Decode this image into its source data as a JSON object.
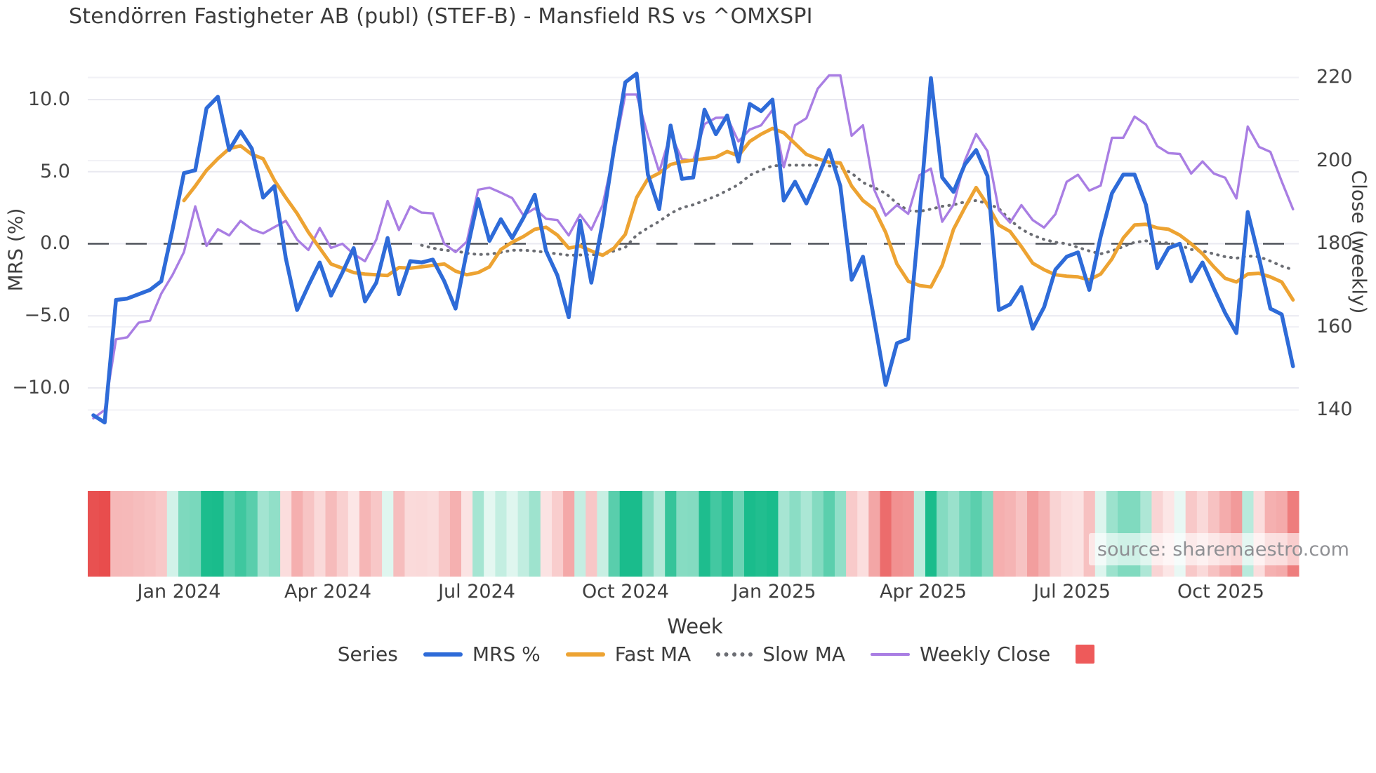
{
  "title": "Stendörren Fastigheter AB (publ) (STEF-B) - Mansfield RS vs ^OMXSPI",
  "source_note": "source: sharemaestro.com",
  "left_axis": {
    "label": "MRS (%)",
    "ticks": [
      {
        "label": "10.0"
      },
      {
        "label": "5.0"
      },
      {
        "label": "0.0"
      },
      {
        "label": "−5.0"
      },
      {
        "label": "−10.0"
      }
    ]
  },
  "right_axis": {
    "label": "Close (weekly)",
    "ticks": [
      {
        "label": "220"
      },
      {
        "label": "200"
      },
      {
        "label": "180"
      },
      {
        "label": "160"
      },
      {
        "label": "140"
      }
    ]
  },
  "x_axis": {
    "label": "Week",
    "ticks": [
      {
        "label": "Jan 2024"
      },
      {
        "label": "Apr 2024"
      },
      {
        "label": "Jul 2024"
      },
      {
        "label": "Oct 2024"
      },
      {
        "label": "Jan 2025"
      },
      {
        "label": "Apr 2025"
      },
      {
        "label": "Jul 2025"
      },
      {
        "label": "Oct 2025"
      }
    ]
  },
  "legend": {
    "series_label": "Series",
    "items": [
      {
        "label": "MRS %"
      },
      {
        "label": "Fast MA"
      },
      {
        "label": "Slow MA"
      },
      {
        "label": "Weekly Close"
      }
    ]
  },
  "colors": {
    "mrs": "#2e6bd8",
    "fast_ma": "#eda332",
    "slow_ma": "#6b6d73",
    "weekly_close": "#a97ee3",
    "heat_positive": "#1abc8c",
    "heat_negative": "#e84d4d",
    "legend_swatch": "#ee5a5a",
    "grid": "#e9e9f0",
    "grid_right": "#f1f1f6",
    "zero_line": "#4d5159"
  },
  "chart_data": {
    "type": "line",
    "title": "Stendörren Fastigheter AB (publ) (STEF-B) - Mansfield RS vs ^OMXSPI",
    "xlabel": "Week",
    "x_tick_labels": [
      "Jan 2024",
      "Apr 2024",
      "Jul 2024",
      "Oct 2024",
      "Jan 2025",
      "Apr 2025",
      "Jul 2025",
      "Oct 2025"
    ],
    "x_tick_week_index": [
      7.6,
      20.7,
      33.9,
      47.0,
      60.2,
      73.3,
      86.5,
      99.6
    ],
    "weeks_count": 107,
    "left_axis": {
      "label": "MRS (%)",
      "tick_values": [
        10.0,
        5.0,
        0.0,
        -5.0,
        -10.0
      ],
      "approx_range": [
        -13.5,
        13.3
      ]
    },
    "right_axis": {
      "label": "Close (weekly)",
      "tick_values": [
        220,
        200,
        180,
        160,
        140
      ],
      "approx_range": [
        136,
        224
      ]
    },
    "grid": true,
    "legend_position": "bottom",
    "zero_reference_line": 0,
    "series": [
      {
        "name": "MRS %",
        "axis": "left",
        "style": "solid",
        "width": 5.5,
        "values": [
          -11.9,
          -12.4,
          -3.9,
          -3.8,
          -3.5,
          -3.2,
          -2.6,
          1.0,
          4.9,
          5.1,
          9.4,
          10.2,
          6.5,
          7.8,
          6.6,
          3.2,
          4.0,
          -1.0,
          -4.6,
          -2.9,
          -1.3,
          -3.6,
          -2.0,
          -0.3,
          -4.0,
          -2.7,
          0.4,
          -3.5,
          -1.2,
          -1.3,
          -1.1,
          -2.6,
          -4.5,
          -0.5,
          3.1,
          0.2,
          1.7,
          0.4,
          1.8,
          3.4,
          -0.5,
          -2.2,
          -5.1,
          1.6,
          -2.7,
          1.5,
          6.6,
          11.2,
          11.8,
          4.8,
          2.4,
          8.2,
          4.5,
          4.6,
          9.3,
          7.6,
          8.9,
          5.7,
          9.7,
          9.2,
          10.0,
          3.0,
          4.3,
          2.8,
          4.6,
          6.5,
          4.0,
          -2.5,
          -0.9,
          -5.3,
          -9.8,
          -6.9,
          -6.6,
          2.0,
          11.5,
          4.6,
          3.6,
          5.5,
          6.5,
          4.7,
          -4.6,
          -4.2,
          -3.0,
          -5.9,
          -4.4,
          -1.8,
          -0.9,
          -0.6,
          -3.2,
          0.5,
          3.5,
          4.8,
          4.8,
          2.7,
          -1.7,
          -0.3,
          0.0,
          -2.6,
          -1.3,
          -3.1,
          -4.8,
          -6.2,
          2.2,
          -1.0,
          -4.5,
          -4.9,
          -8.5
        ]
      },
      {
        "name": "Fast MA",
        "axis": "left",
        "style": "solid",
        "width": 5,
        "values": [
          null,
          null,
          null,
          null,
          null,
          null,
          null,
          null,
          3.0,
          4.0,
          5.1,
          5.9,
          6.6,
          6.8,
          6.2,
          5.9,
          4.4,
          3.2,
          2.1,
          0.8,
          -0.3,
          -1.4,
          -1.7,
          -2.0,
          -2.1,
          -2.15,
          -2.2,
          -1.65,
          -1.7,
          -1.6,
          -1.5,
          -1.4,
          -1.9,
          -2.15,
          -2.0,
          -1.6,
          -0.4,
          0.1,
          0.5,
          1.0,
          1.15,
          0.6,
          -0.3,
          -0.15,
          -0.5,
          -0.8,
          -0.3,
          0.65,
          3.2,
          4.5,
          4.9,
          5.5,
          5.7,
          5.8,
          5.9,
          6.0,
          6.4,
          6.1,
          7.1,
          7.6,
          8.0,
          7.7,
          6.95,
          6.2,
          5.9,
          5.65,
          5.6,
          4.0,
          3.0,
          2.4,
          0.8,
          -1.4,
          -2.6,
          -2.9,
          -3.0,
          -1.5,
          1.0,
          2.5,
          3.9,
          2.7,
          1.3,
          0.85,
          -0.2,
          -1.35,
          -1.8,
          -2.15,
          -2.25,
          -2.3,
          -2.5,
          -2.1,
          -1.05,
          0.4,
          1.3,
          1.35,
          1.1,
          1.0,
          0.6,
          0.0,
          -0.7,
          -1.6,
          -2.4,
          -2.65,
          -2.1,
          -2.05,
          -2.3,
          -2.65,
          -3.9
        ]
      },
      {
        "name": "Slow MA",
        "axis": "left",
        "style": "dotted",
        "width": 4,
        "values": [
          null,
          null,
          null,
          null,
          null,
          null,
          null,
          null,
          null,
          null,
          null,
          null,
          null,
          null,
          null,
          null,
          null,
          null,
          null,
          null,
          null,
          null,
          null,
          null,
          null,
          null,
          null,
          null,
          null,
          -0.1,
          -0.3,
          -0.45,
          -0.5,
          -0.65,
          -0.75,
          -0.72,
          -0.6,
          -0.45,
          -0.45,
          -0.5,
          -0.6,
          -0.7,
          -0.8,
          -0.78,
          -0.76,
          -0.75,
          -0.5,
          -0.25,
          0.6,
          1.1,
          1.55,
          2.1,
          2.5,
          2.7,
          3.0,
          3.3,
          3.7,
          4.1,
          4.75,
          5.1,
          5.4,
          5.45,
          5.45,
          5.45,
          5.45,
          5.4,
          5.3,
          4.9,
          4.25,
          3.9,
          3.5,
          2.8,
          2.3,
          2.25,
          2.4,
          2.6,
          2.7,
          2.9,
          3.0,
          2.8,
          2.45,
          1.65,
          1.0,
          0.6,
          0.3,
          0.1,
          0.0,
          -0.25,
          -0.5,
          -0.7,
          -0.5,
          -0.2,
          0.1,
          0.2,
          0.1,
          0.05,
          -0.1,
          -0.4,
          -0.5,
          -0.7,
          -0.9,
          -1.0,
          -0.85,
          -0.9,
          -1.2,
          -1.55,
          -1.8
        ]
      },
      {
        "name": "Weekly Close",
        "axis": "right",
        "style": "solid",
        "width": 3.4,
        "values": [
          138,
          140,
          157,
          157.5,
          161,
          161.5,
          168,
          172.5,
          178,
          189,
          179.5,
          183.5,
          182,
          185.5,
          183.5,
          182.5,
          184,
          185.5,
          181,
          178.5,
          183.8,
          179,
          180,
          177.5,
          175.8,
          181,
          190.3,
          183.3,
          189,
          187.5,
          187.3,
          180,
          178,
          180.5,
          193,
          193.5,
          192.3,
          191,
          186.8,
          188.5,
          186,
          185.7,
          182,
          187,
          183.4,
          189.3,
          202,
          215.9,
          215.9,
          206,
          197.3,
          206.4,
          200.4,
          200,
          208.8,
          210.3,
          210.4,
          204.6,
          207.5,
          208.5,
          212.2,
          198.4,
          208.5,
          210.2,
          217.3,
          220.5,
          220.5,
          206,
          208.5,
          193,
          186.8,
          189.3,
          187.2,
          196.5,
          198.1,
          185.3,
          189.4,
          200,
          206.4,
          202.3,
          188.1,
          185.1,
          189.3,
          185.7,
          183.9,
          187.1,
          194.9,
          196.6,
          192.8,
          194.0,
          205.5,
          205.5,
          210.6,
          208.7,
          203.5,
          201.8,
          201.6,
          196.9,
          199.8,
          196.9,
          195.9,
          190.9,
          208.2,
          203.3,
          202.1,
          195,
          188.3
        ]
      }
    ],
    "heatmap_strip": {
      "description": "weekly color strip derived from MRS % values (red = negative, green = positive)",
      "source_series": "MRS %"
    }
  }
}
